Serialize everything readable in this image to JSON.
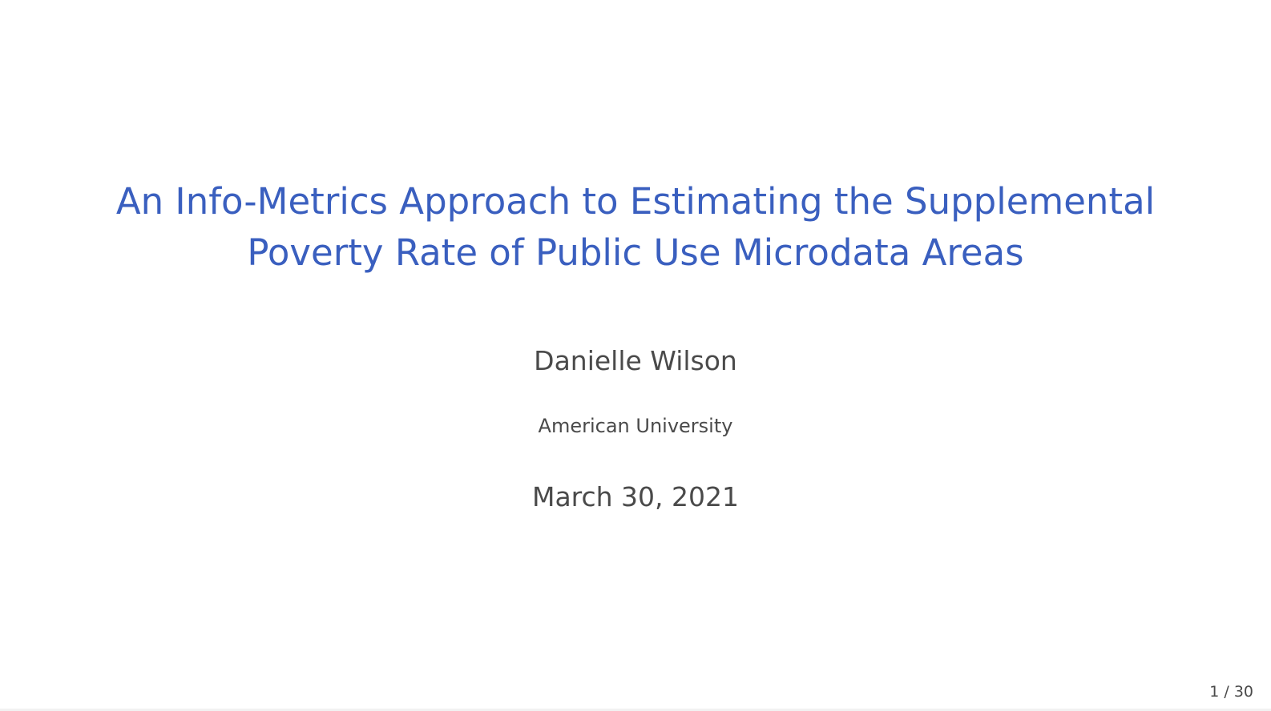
{
  "slide": {
    "title_lines": [
      "An Info-Metrics Approach to Estimating the Supplemental",
      "Poverty Rate of Public Use Microdata Areas"
    ],
    "author": "Danielle Wilson",
    "institute": "American University",
    "date": "March 30, 2021",
    "page_number": "1 / 30"
  },
  "colors": {
    "title": "#3a5fbf",
    "body_text": "#4a4a4a",
    "background": "#ffffff"
  }
}
